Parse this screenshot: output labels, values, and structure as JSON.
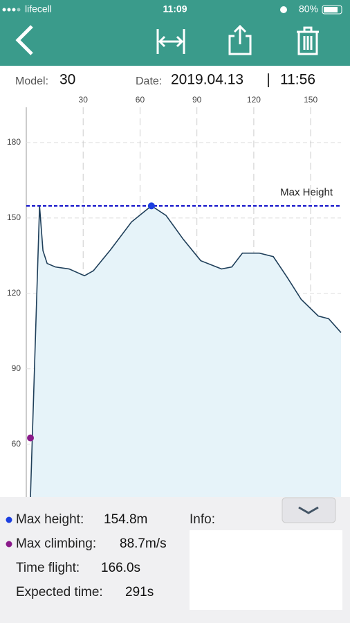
{
  "status_bar": {
    "carrier": "lifecell",
    "time": "11:09",
    "battery": "80%"
  },
  "info_row": {
    "model_label": "Model:",
    "model": "30",
    "date_label": "Date:",
    "date": "2019.04.13",
    "separator": "|",
    "time": "11:56"
  },
  "chart_data": {
    "type": "line",
    "x": [
      2.2,
      7,
      8.8,
      11,
      15.3,
      22.6,
      30.7,
      35.4,
      44.5,
      55.5,
      66,
      73.7,
      82.8,
      92,
      103,
      108.4,
      114,
      123,
      130.3,
      137.6,
      145,
      154,
      159.5,
      166
    ],
    "series": [
      {
        "color": "#1f3f5a",
        "values": [
          39,
          154.8,
          137,
          131.9,
          130.5,
          129.7,
          127,
          129,
          137.4,
          148.4,
          154.8,
          151,
          141.5,
          133,
          129.7,
          130.5,
          136,
          136,
          134.6,
          126.4,
          117.6,
          111,
          109.9,
          104.4
        ]
      }
    ],
    "xlim": [
      0,
      166
    ],
    "ylim": [
      39,
      194
    ],
    "xticks": [
      30,
      60,
      90,
      120,
      150
    ],
    "yticks": [
      60,
      90,
      120,
      150,
      180
    ],
    "grid": true,
    "max_line": {
      "label": "Max Height",
      "value": 154.8,
      "color": "#1c1ccc"
    },
    "markers": [
      {
        "x": 66,
        "y": 154.8,
        "color": "#1c3fe0"
      },
      {
        "x": 2.2,
        "y": 62.5,
        "color": "#8a1a8a"
      }
    ]
  },
  "stats": {
    "max_height": {
      "label": "Max height:",
      "value": "154.8m"
    },
    "max_climbing": {
      "label": "Max climbing:",
      "value": "88.7m/s"
    },
    "time_flight": {
      "label": "Time flight:",
      "value": "166.0s"
    },
    "expected_time": {
      "label": "Expected time:",
      "value": "291s"
    },
    "info_label": "Info:"
  }
}
